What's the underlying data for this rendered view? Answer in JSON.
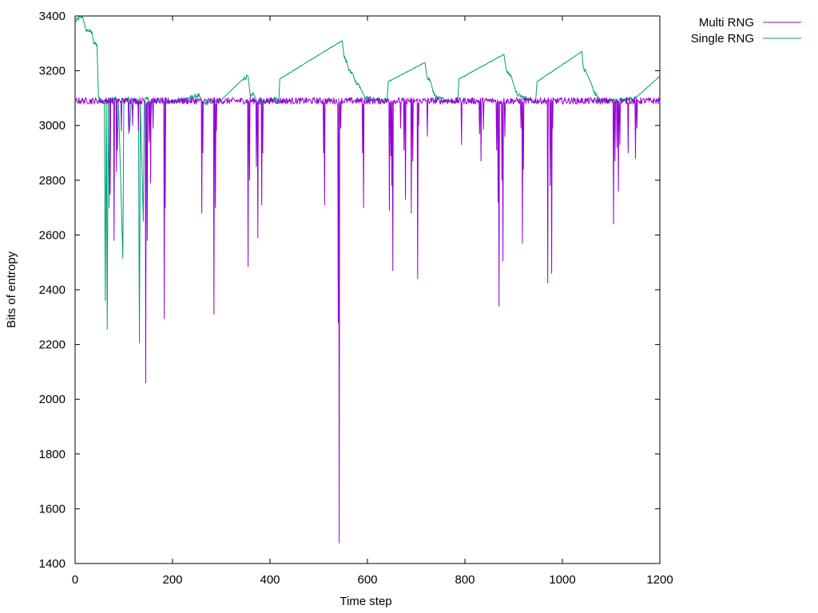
{
  "chart_data": {
    "type": "line",
    "title": "",
    "xlabel": "Time step",
    "ylabel": "Bits of entropy",
    "xlim": [
      0,
      1200
    ],
    "ylim": [
      1400,
      3400
    ],
    "x_ticks": [
      0,
      200,
      400,
      600,
      800,
      1000,
      1200
    ],
    "y_ticks": [
      1400,
      1600,
      1800,
      2000,
      2200,
      2400,
      2600,
      2800,
      3000,
      3200,
      3400
    ],
    "grid": false,
    "legend_position": "top-right, outside plot",
    "series": [
      {
        "name": "Multi RNG",
        "color": "#9400d3",
        "baseline": 3090,
        "baseline_jitter": 12,
        "dips": [
          [
            72,
            2750
          ],
          [
            80,
            2580
          ],
          [
            85,
            2830
          ],
          [
            95,
            2980
          ],
          [
            110,
            2970
          ],
          [
            118,
            3000
          ],
          [
            130,
            2980
          ],
          [
            145,
            2060
          ],
          [
            148,
            2580
          ],
          [
            152,
            2940
          ],
          [
            155,
            2790
          ],
          [
            160,
            2990
          ],
          [
            183,
            2295
          ],
          [
            185,
            2700
          ],
          [
            260,
            2680
          ],
          [
            262,
            2900
          ],
          [
            285,
            2310
          ],
          [
            288,
            2700
          ],
          [
            290,
            2980
          ],
          [
            355,
            2485
          ],
          [
            358,
            2800
          ],
          [
            372,
            2850
          ],
          [
            375,
            2590
          ],
          [
            383,
            2710
          ],
          [
            385,
            2900
          ],
          [
            510,
            2900
          ],
          [
            512,
            2710
          ],
          [
            540,
            2280
          ],
          [
            542,
            1475
          ],
          [
            545,
            2990
          ],
          [
            590,
            2900
          ],
          [
            592,
            2700
          ],
          [
            645,
            2690
          ],
          [
            648,
            2890
          ],
          [
            650,
            2780
          ],
          [
            652,
            2470
          ],
          [
            668,
            2990
          ],
          [
            675,
            2910
          ],
          [
            678,
            2730
          ],
          [
            690,
            2680
          ],
          [
            693,
            2870
          ],
          [
            703,
            2440
          ],
          [
            705,
            3000
          ],
          [
            723,
            2960
          ],
          [
            793,
            2930
          ],
          [
            830,
            2970
          ],
          [
            833,
            2870
          ],
          [
            838,
            2985
          ],
          [
            865,
            2910
          ],
          [
            868,
            2720
          ],
          [
            870,
            2340
          ],
          [
            876,
            2800
          ],
          [
            878,
            2505
          ],
          [
            882,
            2960
          ],
          [
            915,
            2990
          ],
          [
            918,
            2570
          ],
          [
            920,
            2840
          ],
          [
            970,
            2425
          ],
          [
            975,
            2780
          ],
          [
            978,
            2460
          ],
          [
            980,
            2990
          ],
          [
            1105,
            2640
          ],
          [
            1108,
            2870
          ],
          [
            1112,
            2920
          ],
          [
            1115,
            2760
          ],
          [
            1118,
            2930
          ],
          [
            1135,
            2900
          ],
          [
            1150,
            2880
          ],
          [
            1153,
            2990
          ]
        ]
      },
      {
        "name": "Single RNG",
        "color": "#009e73",
        "baseline": 3090,
        "baseline_jitter": 8,
        "segments": [
          [
            [
              0,
              3380
            ],
            [
              15,
              3400
            ],
            [
              22,
              3350
            ],
            [
              35,
              3340
            ],
            [
              38,
              3300
            ],
            [
              45,
              3295
            ],
            [
              48,
              3100
            ]
          ],
          [
            [
              48,
              3100
            ],
            [
              60,
              3080
            ],
            [
              62,
              2360
            ],
            [
              64,
              3100
            ],
            [
              66,
              2255
            ],
            [
              68,
              3100
            ],
            [
              70,
              2700
            ],
            [
              72,
              3100
            ],
            [
              85,
              3100
            ],
            [
              87,
              2910
            ],
            [
              89,
              3095
            ],
            [
              98,
              2515
            ],
            [
              100,
              3090
            ],
            [
              110,
              3100
            ],
            [
              112,
              2980
            ],
            [
              115,
              3095
            ],
            [
              130,
              3090
            ],
            [
              132,
              2205
            ],
            [
              134,
              3085
            ],
            [
              140,
              2650
            ],
            [
              142,
              3090
            ],
            [
              150,
              3100
            ],
            [
              155,
              3000
            ],
            [
              157,
              3090
            ],
            [
              200,
              3085
            ],
            [
              255,
              3110
            ],
            [
              260,
              3080
            ],
            [
              298,
              3090
            ],
            [
              345,
              3170
            ],
            [
              355,
              3180
            ],
            [
              360,
              3100
            ],
            [
              365,
              3120
            ],
            [
              375,
              3080
            ],
            [
              412,
              3100
            ],
            [
              418,
              3080
            ],
            [
              420,
              3170
            ],
            [
              548,
              3310
            ],
            [
              552,
              3250
            ],
            [
              558,
              3230
            ],
            [
              562,
              3200
            ],
            [
              570,
              3190
            ],
            [
              575,
              3160
            ],
            [
              585,
              3140
            ],
            [
              595,
              3100
            ],
            [
              640,
              3090
            ],
            [
              643,
              3160
            ],
            [
              718,
              3230
            ],
            [
              722,
              3180
            ],
            [
              730,
              3160
            ],
            [
              735,
              3120
            ],
            [
              743,
              3100
            ],
            [
              785,
              3085
            ],
            [
              788,
              3170
            ],
            [
              880,
              3260
            ],
            [
              885,
              3200
            ],
            [
              895,
              3180
            ],
            [
              900,
              3150
            ],
            [
              905,
              3120
            ],
            [
              910,
              3110
            ],
            [
              945,
              3085
            ],
            [
              948,
              3160
            ],
            [
              1040,
              3270
            ],
            [
              1043,
              3210
            ],
            [
              1050,
              3190
            ],
            [
              1060,
              3150
            ],
            [
              1065,
              3120
            ],
            [
              1070,
              3110
            ],
            [
              1080,
              3085
            ],
            [
              1100,
              3090
            ],
            [
              1150,
              3100
            ],
            [
              1200,
              3180
            ]
          ]
        ]
      }
    ]
  }
}
